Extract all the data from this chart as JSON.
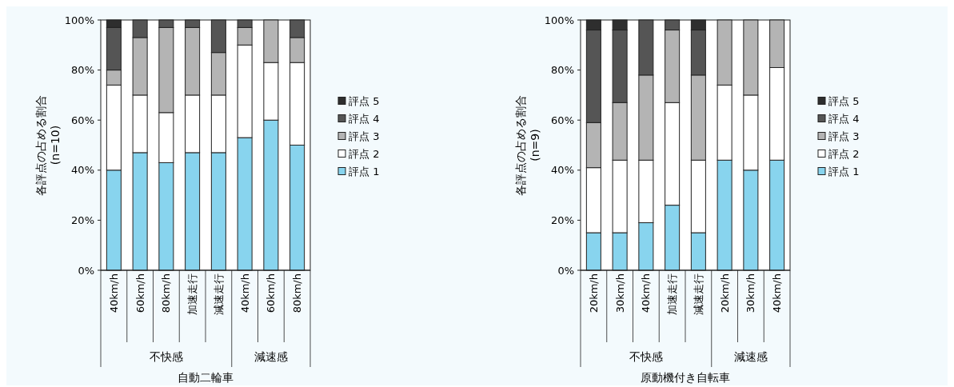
{
  "chart_data": [
    {
      "type": "bar",
      "stacked": true,
      "xlabel": "自動二輪車",
      "ylabel": "各評点の占める割合\n(n=10)",
      "categories": [
        "40km/h",
        "60km/h",
        "80km/h",
        "加速走行",
        "減速走行",
        "40km/h",
        "60km/h",
        "80km/h"
      ],
      "annotations": [
        "不快感",
        "減速感"
      ],
      "ylim": [
        0,
        100
      ],
      "yticks": [
        {
          "value": 0,
          "label": "0%"
        },
        {
          "value": 20,
          "label": "20%"
        },
        {
          "value": 40,
          "label": "40%"
        },
        {
          "value": 60,
          "label": "60%"
        },
        {
          "value": 80,
          "label": "80%"
        },
        {
          "value": 100,
          "label": "100%"
        }
      ],
      "legend": "right",
      "series": [
        {
          "name": "評点 1",
          "color": "#88d4ee",
          "values": [
            40,
            47,
            43,
            47,
            47,
            53,
            60,
            50
          ]
        },
        {
          "name": "評点 2",
          "color": "#ffffff",
          "values": [
            34,
            23,
            20,
            23,
            23,
            37,
            23,
            33
          ]
        },
        {
          "name": "評点 3",
          "color": "#b4b4b4",
          "values": [
            6,
            23,
            34,
            27,
            17,
            7,
            17,
            10
          ]
        },
        {
          "name": "評点 4",
          "color": "#555555",
          "values": [
            17,
            7,
            3,
            3,
            13,
            3,
            0,
            7
          ]
        },
        {
          "name": "評点 5",
          "color": "#2e2e2e",
          "values": [
            3,
            0,
            0,
            0,
            0,
            0,
            0,
            0
          ]
        }
      ]
    },
    {
      "type": "bar",
      "stacked": true,
      "xlabel": "原動機付き自転車",
      "ylabel": "各評点の占める割合\n(n=9)",
      "categories": [
        "20km/h",
        "30km/h",
        "40km/h",
        "加速走行",
        "減速走行",
        "20km/h",
        "30km/h",
        "40km/h"
      ],
      "annotations": [
        "不快感",
        "減速感"
      ],
      "ylim": [
        0,
        100
      ],
      "yticks": [
        {
          "value": 0,
          "label": "0%"
        },
        {
          "value": 20,
          "label": "20%"
        },
        {
          "value": 40,
          "label": "40%"
        },
        {
          "value": 60,
          "label": "60%"
        },
        {
          "value": 80,
          "label": "80%"
        },
        {
          "value": 100,
          "label": "100%"
        }
      ],
      "legend": "right",
      "series": [
        {
          "name": "評点 1",
          "color": "#88d4ee",
          "values": [
            15,
            15,
            19,
            26,
            15,
            44,
            40,
            44
          ]
        },
        {
          "name": "評点 2",
          "color": "#ffffff",
          "values": [
            26,
            29,
            25,
            41,
            29,
            30,
            30,
            37
          ]
        },
        {
          "name": "評点 3",
          "color": "#b4b4b4",
          "values": [
            18,
            23,
            34,
            29,
            34,
            26,
            30,
            19
          ]
        },
        {
          "name": "評点 4",
          "color": "#555555",
          "values": [
            37,
            29,
            22,
            4,
            18,
            0,
            0,
            0
          ]
        },
        {
          "name": "評点 5",
          "color": "#2e2e2e",
          "values": [
            4,
            4,
            0,
            0,
            4,
            0,
            0,
            0
          ]
        }
      ]
    }
  ]
}
